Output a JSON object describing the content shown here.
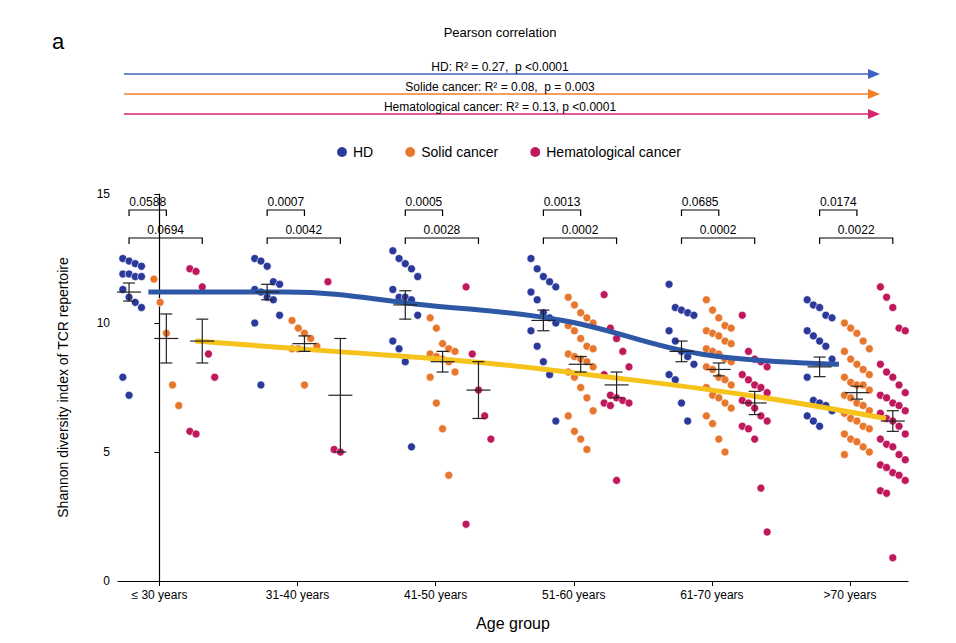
{
  "chart_data": {
    "type": "scatter",
    "panel_label": "a",
    "title": "Pearson correlation",
    "annotations": [
      {
        "text": "HD: R² = 0.27,  p <0.0001",
        "color": "#3d63c2"
      },
      {
        "text": "Solide cancer: R² = 0.08,  p = 0.003",
        "color": "#f07f2a"
      },
      {
        "text": "Hematological cancer: R² = 0.13, p <0.0001",
        "color": "#d6246e"
      }
    ],
    "categories": [
      "≤ 30 years",
      "31-40 years",
      "41-50 years",
      "51-60 years",
      "61-70 years",
      ">70 years"
    ],
    "x_label": "Age group",
    "y_label": "Shannon diversity index of TCR repertoire",
    "ylim": [
      0,
      15
    ],
    "yticks": [
      0,
      5,
      10,
      15
    ],
    "grid": false,
    "legend": "top",
    "series": [
      {
        "name": "HD",
        "color": "#2b3a9a",
        "marker": "circle",
        "values": [
          [
            12.6,
            12.5,
            12.4,
            12.3,
            12.2,
            12.0,
            11.9,
            11.9,
            11.8,
            11.8,
            11.6,
            11.3,
            11.0,
            10.8,
            10.6,
            10.3,
            7.9,
            7.2
          ],
          [
            12.5,
            12.4,
            12.2,
            11.6,
            11.5,
            11.3,
            11.2,
            11.0,
            10.9,
            10.3,
            10.0,
            7.6
          ],
          [
            12.8,
            12.5,
            12.3,
            12.1,
            11.8,
            11.3,
            11.0,
            11.0,
            10.9,
            10.3,
            9.3,
            9.0,
            8.5,
            5.2
          ],
          [
            12.5,
            12.1,
            11.8,
            11.6,
            11.4,
            11.2,
            10.9,
            10.4,
            10.2,
            10.0,
            9.7,
            9.1,
            8.5,
            8.0,
            6.2
          ],
          [
            11.5,
            10.6,
            10.5,
            10.4,
            10.3,
            9.7,
            9.3,
            8.9,
            8.7,
            8.4,
            8.0,
            7.8,
            6.9,
            6.2
          ],
          [
            10.9,
            10.7,
            10.6,
            10.3,
            10.2,
            9.7,
            9.5,
            9.3,
            9.1,
            8.6,
            7.9,
            7.0,
            6.9,
            6.8,
            6.6,
            6.4,
            6.2,
            6.0
          ]
        ],
        "mean": [
          11.2,
          11.2,
          10.7,
          10.1,
          8.9,
          8.3
        ],
        "sem": [
          0.35,
          0.3,
          0.55,
          0.4,
          0.4,
          0.38
        ]
      },
      {
        "name": "Solid cancer",
        "color": "#e8772e",
        "marker": "circle",
        "values": [
          [
            11.7,
            10.8,
            9.6,
            7.6,
            6.8
          ],
          [
            10.1,
            9.8,
            9.6,
            9.4,
            9.1,
            9.0,
            9.0,
            7.6
          ],
          [
            10.2,
            9.8,
            9.2,
            9.0,
            8.9,
            8.8,
            8.7,
            8.6,
            8.5,
            8.1,
            7.9,
            6.9,
            5.9,
            4.1
          ],
          [
            11.0,
            10.7,
            10.4,
            10.2,
            10.0,
            9.9,
            9.7,
            9.4,
            9.1,
            9.0,
            8.8,
            8.7,
            8.6,
            8.5,
            8.3,
            8.1,
            7.9,
            7.5,
            7.1,
            6.6,
            6.4,
            5.8,
            5.5,
            5.1
          ],
          [
            10.9,
            10.5,
            10.2,
            9.9,
            9.8,
            9.7,
            9.6,
            9.5,
            9.3,
            9.2,
            9.0,
            8.9,
            8.8,
            8.6,
            8.5,
            8.3,
            8.2,
            7.9,
            7.8,
            7.6,
            7.5,
            7.2,
            7.1,
            6.9,
            6.7,
            6.4,
            6.1,
            5.5,
            5.0
          ],
          [
            10.0,
            9.8,
            9.6,
            9.3,
            9.0,
            8.9,
            8.6,
            8.4,
            8.2,
            8.0,
            7.9,
            7.7,
            7.6,
            7.6,
            7.4,
            7.2,
            7.1,
            6.9,
            6.8,
            6.6,
            6.5,
            6.3,
            6.2,
            6.0,
            5.9,
            5.7,
            5.5,
            5.4,
            5.2,
            5.0,
            4.9
          ]
        ],
        "mean": [
          9.4,
          9.2,
          8.5,
          8.4,
          8.2,
          7.3
        ],
        "sem": [
          0.95,
          0.3,
          0.4,
          0.3,
          0.25,
          0.25
        ]
      },
      {
        "name": "Hematological cancer",
        "color": "#c0185d",
        "marker": "circle",
        "values": [
          [
            12.1,
            12.0,
            11.4,
            8.8,
            7.9,
            5.8,
            5.7
          ],
          [
            11.6,
            5.1,
            5.0
          ],
          [
            11.4,
            8.8,
            7.4,
            6.4,
            5.5,
            2.2
          ],
          [
            11.1,
            9.8,
            9.4,
            8.9,
            8.3,
            8.0,
            7.2,
            7.1,
            7.0,
            6.9,
            6.9,
            6.8,
            3.9
          ],
          [
            10.3,
            8.9,
            8.6,
            8.5,
            8.3,
            8.0,
            7.8,
            7.6,
            7.5,
            7.3,
            7.0,
            6.9,
            6.7,
            6.4,
            6.2,
            6.0,
            5.9,
            5.5,
            3.6,
            1.9
          ],
          [
            11.4,
            11.0,
            10.6,
            9.8,
            9.7,
            8.4,
            8.1,
            7.9,
            7.6,
            7.3,
            7.2,
            7.1,
            6.9,
            6.8,
            6.6,
            6.5,
            6.3,
            6.2,
            6.0,
            5.7,
            5.5,
            5.3,
            5.2,
            4.9,
            4.7,
            4.5,
            4.4,
            4.2,
            4.1,
            3.9,
            3.5,
            3.4,
            0.9
          ]
        ],
        "mean": [
          9.3,
          7.2,
          7.4,
          7.6,
          6.9,
          6.2
        ],
        "sem": [
          0.85,
          2.2,
          1.1,
          0.5,
          0.45,
          0.4
        ]
      }
    ],
    "trend_lines": [
      {
        "color": "#2e57a5",
        "values": [
          11.2,
          11.2,
          10.7,
          10.1,
          8.8,
          8.4
        ]
      },
      {
        "color": "#f6c21c",
        "values": [
          9.3,
          8.9,
          8.5,
          7.9,
          7.2,
          6.3
        ]
      }
    ],
    "p_values": [
      {
        "vs_solid": "0.0588",
        "vs_hematological": "0.0694"
      },
      {
        "vs_solid": "0.0007",
        "vs_hematological": "0.0042"
      },
      {
        "vs_solid": "0.0005",
        "vs_hematological": "0.0028"
      },
      {
        "vs_solid": "0.0013",
        "vs_hematological": "0.0002"
      },
      {
        "vs_solid": "0.0685",
        "vs_hematological": "0.0002"
      },
      {
        "vs_solid": "0.0174",
        "vs_hematological": "0.0022"
      }
    ]
  }
}
